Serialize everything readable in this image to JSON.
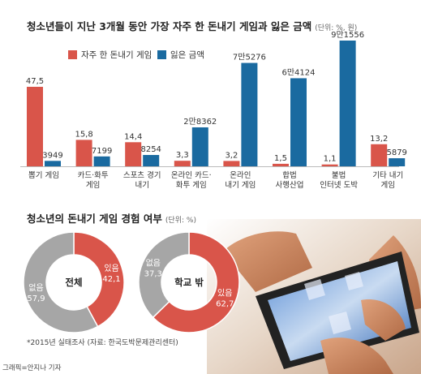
{
  "chart_data": [
    {
      "type": "bar",
      "title": "청소년들이 지난 3개월 동안 가장 자주 한 돈내기 게임과 잃은 금액",
      "unit": "(단위: %, 원)",
      "categories": [
        "뽑기 게임",
        "카드·화투 게임",
        "스포츠 경기 내기",
        "온라인 카드·화투 게임",
        "온라인 내기 게임",
        "합법 사행산업",
        "불법 인터넷 도박",
        "기타 내기 게임"
      ],
      "category_lines": [
        [
          "뽑기 게임"
        ],
        [
          "카드·화투",
          "게임"
        ],
        [
          "스포츠 경기",
          "내기"
        ],
        [
          "온라인 카드·",
          "화투 게임"
        ],
        [
          "온라인",
          "내기 게임"
        ],
        [
          "합법",
          "사행산업"
        ],
        [
          "불법",
          "인터넷 도박"
        ],
        [
          "기타 내기",
          "게임"
        ]
      ],
      "series": [
        {
          "name": "자주 한 돈내기 게임",
          "color": "#d9554a",
          "values": [
            47.5,
            15.8,
            14.4,
            3.3,
            3.2,
            1.5,
            1.1,
            13.2
          ],
          "labels": [
            "47,5",
            "15,8",
            "14,4",
            "3,3",
            "3,2",
            "1,5",
            "1,1",
            "13,2"
          ]
        },
        {
          "name": "잃은 금액",
          "color": "#1a6aa0",
          "values": [
            3949,
            7199,
            8254,
            28362,
            75276,
            64124,
            91556,
            5879
          ],
          "labels": [
            "3949",
            "7199",
            "8254",
            "2만8362",
            "7만5276",
            "6만4124",
            "9만1556",
            "5879"
          ]
        }
      ]
    },
    {
      "type": "pie",
      "title": "청소년의 돈내기 게임 경험 여부",
      "unit": "(단위: %)",
      "charts": [
        {
          "center": "전체",
          "slices": [
            {
              "label": "있음",
              "value": 42.1,
              "text": "42,1",
              "color": "#d9554a"
            },
            {
              "label": "없음",
              "value": 57.9,
              "text": "57,9",
              "color": "#a6a6a6"
            }
          ]
        },
        {
          "center": "학교 밖",
          "slices": [
            {
              "label": "있음",
              "value": 62.7,
              "text": "62,7",
              "color": "#d9554a"
            },
            {
              "label": "없음",
              "value": 37.3,
              "text": "37,3",
              "color": "#a6a6a6"
            }
          ]
        }
      ]
    }
  ],
  "note": "*2015년 실태조사   (자료: 한국도박문제관리센터)",
  "credit": "그래픽=안지나 기자"
}
